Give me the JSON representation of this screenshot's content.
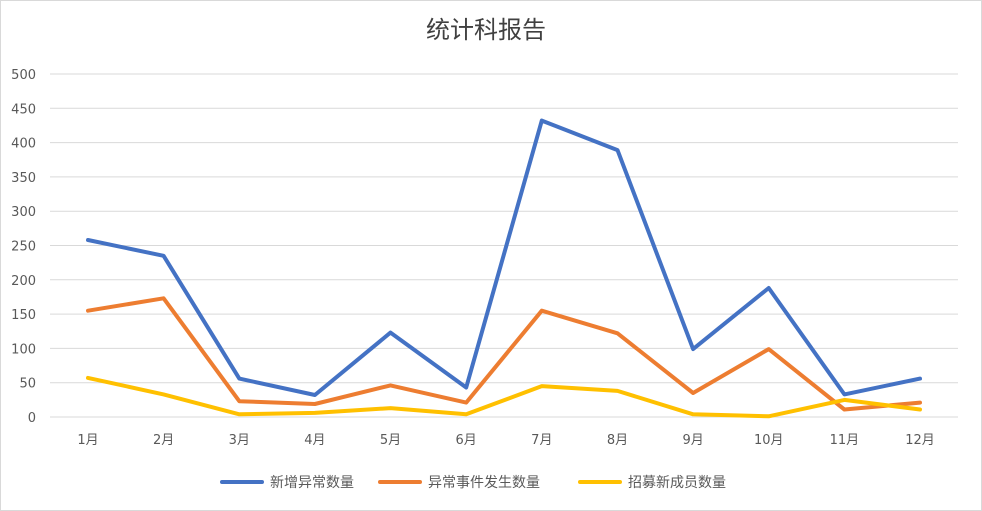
{
  "chart_data": {
    "type": "line",
    "title": "统计科报告",
    "categories": [
      "1月",
      "2月",
      "3月",
      "4月",
      "5月",
      "6月",
      "7月",
      "8月",
      "9月",
      "10月",
      "11月",
      "12月"
    ],
    "ylim": [
      0,
      500
    ],
    "yticks": [
      0,
      50,
      100,
      150,
      200,
      250,
      300,
      350,
      400,
      450,
      500
    ],
    "grid": true,
    "legend_position": "bottom",
    "series": [
      {
        "name": "新增异常数量",
        "color": "#4472c4",
        "values": [
          258,
          235,
          56,
          32,
          123,
          43,
          432,
          389,
          99,
          188,
          33,
          56
        ]
      },
      {
        "name": "异常事件发生数量",
        "color": "#ed7d31",
        "values": [
          155,
          173,
          23,
          19,
          46,
          21,
          155,
          122,
          35,
          99,
          11,
          21
        ]
      },
      {
        "name": "招募新成员数量",
        "color": "#ffc000",
        "values": [
          57,
          33,
          4,
          6,
          13,
          4,
          45,
          38,
          4,
          1,
          25,
          11
        ]
      }
    ]
  }
}
